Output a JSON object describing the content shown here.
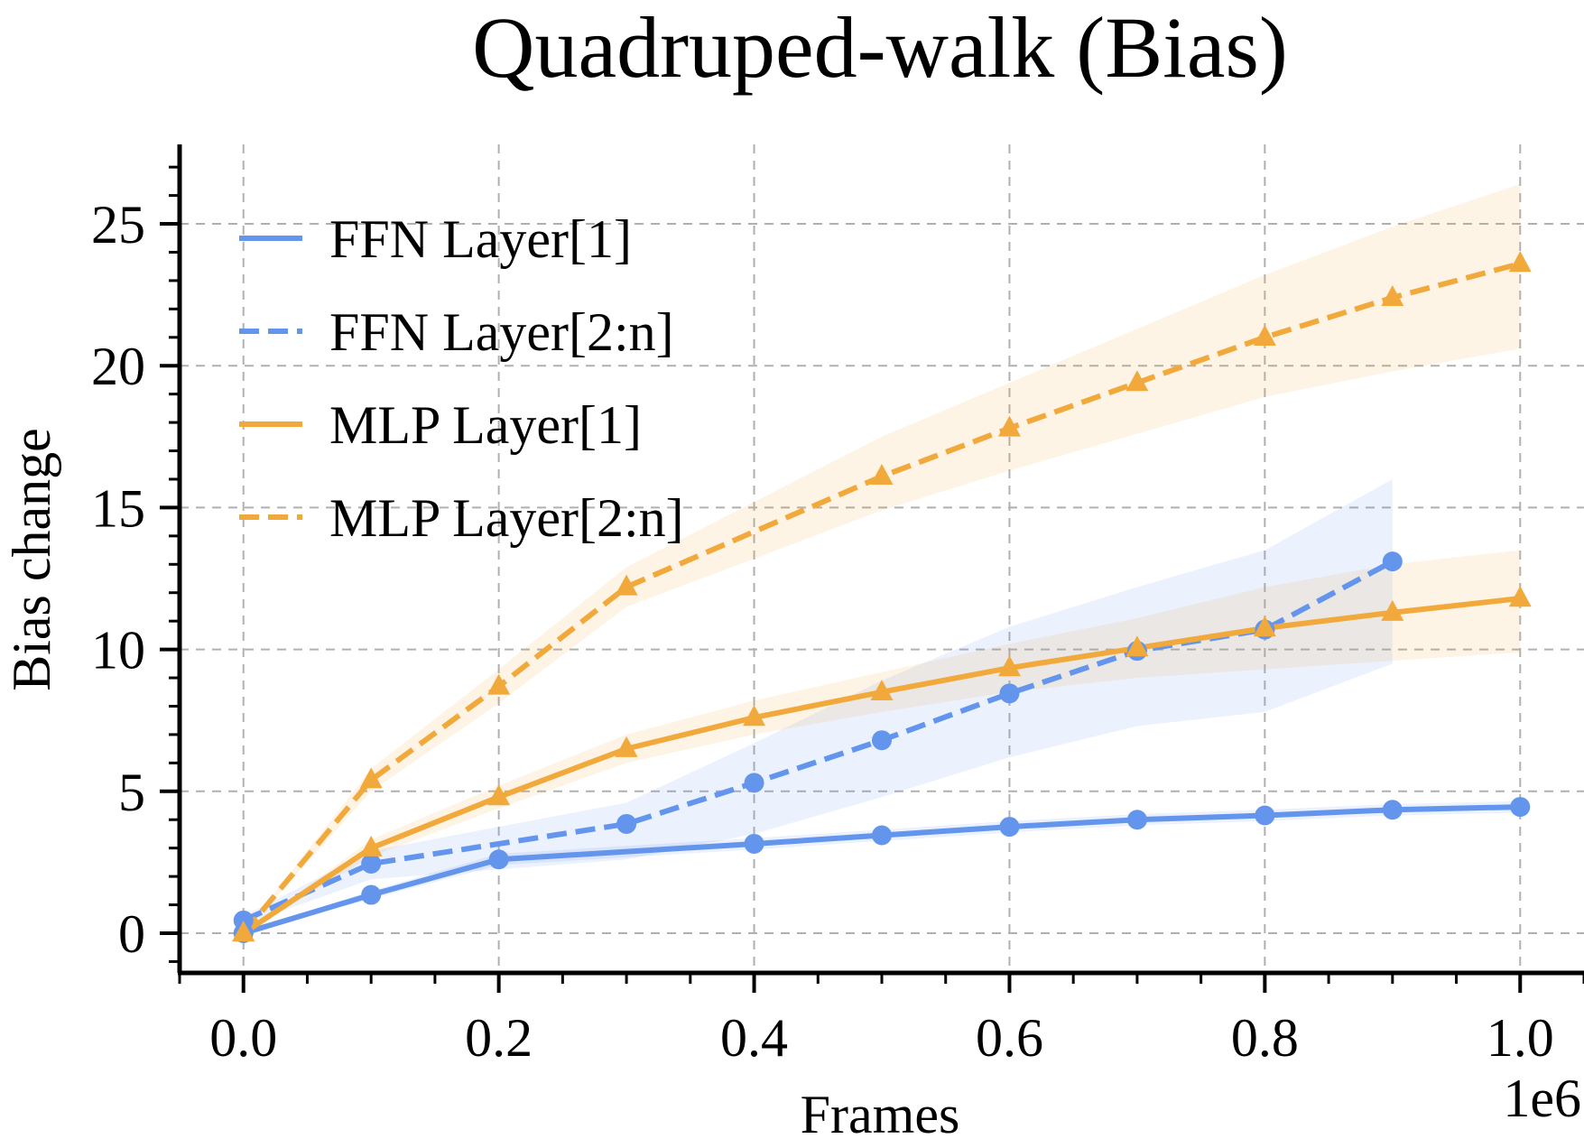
{
  "chart_data": {
    "type": "line",
    "title": "Quadruped-walk (Bias)",
    "xlabel": "Frames",
    "ylabel": "Bias change",
    "x_offset_label": "1e6",
    "xlim": [
      -0.05,
      1.05
    ],
    "ylim": [
      -1.4,
      27.8
    ],
    "xticks": [
      0.0,
      0.2,
      0.4,
      0.6,
      0.8,
      1.0
    ],
    "xtick_labels": [
      "0.0",
      "0.2",
      "0.4",
      "0.6",
      "0.8",
      "1.0"
    ],
    "yticks": [
      0,
      5,
      10,
      15,
      20,
      25
    ],
    "ytick_labels": [
      "0",
      "5",
      "10",
      "15",
      "20",
      "25"
    ],
    "grid": true,
    "legend_position": "upper-left",
    "series": [
      {
        "name": "FFN Layer[1]",
        "color": "#6495ed",
        "dash": "solid",
        "marker": "circle",
        "x": [
          0.0,
          0.1,
          0.2,
          0.4,
          0.5,
          0.6,
          0.7,
          0.8,
          0.9,
          1.0
        ],
        "y": [
          0.0,
          1.35,
          2.6,
          3.15,
          3.45,
          3.75,
          4.0,
          4.15,
          4.35,
          4.45
        ],
        "lower": [
          0.0,
          1.2,
          2.4,
          2.95,
          3.25,
          3.55,
          3.8,
          3.95,
          4.15,
          4.25
        ],
        "upper": [
          0.0,
          1.5,
          2.8,
          3.35,
          3.65,
          3.95,
          4.2,
          4.35,
          4.55,
          4.65
        ]
      },
      {
        "name": "FFN Layer[2:n]",
        "color": "#6495ed",
        "dash": "dashed",
        "marker": "circle",
        "x": [
          0.0,
          0.1,
          0.3,
          0.4,
          0.5,
          0.6,
          0.7,
          0.8,
          0.9
        ],
        "y": [
          0.45,
          2.45,
          3.85,
          5.3,
          6.8,
          8.45,
          9.95,
          10.7,
          13.1
        ],
        "lower": [
          0.3,
          1.9,
          2.6,
          3.5,
          4.8,
          6.2,
          7.3,
          7.8,
          9.5
        ],
        "upper": [
          0.6,
          2.9,
          4.6,
          6.7,
          8.9,
          10.8,
          12.2,
          13.5,
          16.0
        ]
      },
      {
        "name": "MLP Layer[1]",
        "color": "#f2a93b",
        "dash": "solid",
        "marker": "triangle",
        "x": [
          0.0,
          0.1,
          0.2,
          0.3,
          0.4,
          0.5,
          0.6,
          0.7,
          0.8,
          0.9,
          1.0
        ],
        "y": [
          0.0,
          3.0,
          4.8,
          6.5,
          7.6,
          8.5,
          9.35,
          10.05,
          10.75,
          11.3,
          11.8
        ],
        "lower": [
          0.0,
          2.7,
          4.4,
          6.0,
          7.0,
          7.8,
          8.5,
          9.0,
          9.3,
          9.6,
          9.9
        ],
        "upper": [
          0.0,
          3.3,
          5.2,
          7.0,
          8.2,
          9.2,
          10.2,
          11.1,
          12.2,
          13.0,
          13.5
        ]
      },
      {
        "name": "MLP Layer[2:n]",
        "color": "#f2a93b",
        "dash": "dashed",
        "marker": "triangle",
        "x": [
          0.0,
          0.1,
          0.2,
          0.3,
          0.5,
          0.6,
          0.7,
          0.8,
          0.9,
          1.0
        ],
        "y": [
          0.0,
          5.4,
          8.7,
          12.2,
          16.1,
          17.8,
          19.4,
          21.0,
          22.4,
          23.6
        ],
        "lower": [
          0.0,
          5.0,
          8.1,
          11.5,
          14.9,
          16.3,
          17.6,
          18.9,
          19.8,
          20.6
        ],
        "upper": [
          0.0,
          5.8,
          9.3,
          12.9,
          17.5,
          19.4,
          21.3,
          23.2,
          24.9,
          26.4
        ]
      }
    ]
  }
}
